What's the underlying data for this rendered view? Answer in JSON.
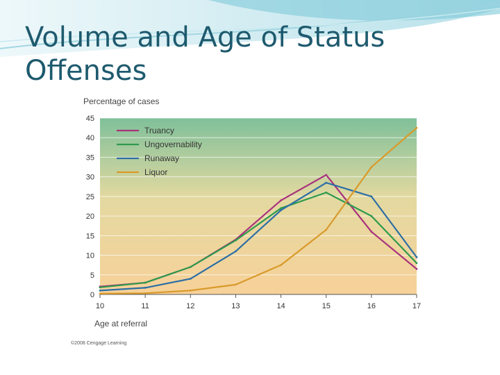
{
  "slide": {
    "title": "Volume and Age of Status Offenses"
  },
  "colors": {
    "title": "#1e5a6e",
    "header_swoosh": "#7fc9d9",
    "band_top": "#7fc09a",
    "band_mid": "#e3d9a0",
    "band_bottom": "#f7d199"
  },
  "chart_data": {
    "type": "line",
    "ylabel": "Percentage of cases",
    "xlabel": "Age at referral",
    "x": [
      10,
      11,
      12,
      13,
      14,
      15,
      16,
      17
    ],
    "ylim": [
      0,
      45
    ],
    "xlim": [
      10,
      17
    ],
    "yticks": [
      0,
      5,
      10,
      15,
      20,
      25,
      30,
      35,
      40,
      45
    ],
    "grid": "horizontal",
    "legend_position": "top-left",
    "credit": "©2008 Cengage Learning",
    "series": [
      {
        "name": "Truancy",
        "color": "#a8327c",
        "values": [
          2.0,
          3.0,
          7.0,
          14.0,
          24.0,
          30.5,
          16.0,
          6.5
        ]
      },
      {
        "name": "Ungovernability",
        "color": "#2e9a4e",
        "values": [
          1.8,
          3.0,
          7.0,
          13.8,
          22.0,
          26.0,
          20.0,
          8.0
        ]
      },
      {
        "name": "Runaway",
        "color": "#2b6ea5",
        "values": [
          1.0,
          1.7,
          4.0,
          11.0,
          21.5,
          28.5,
          25.0,
          9.5
        ]
      },
      {
        "name": "Liquor",
        "color": "#d99a2b",
        "values": [
          0.2,
          0.3,
          1.0,
          2.5,
          7.5,
          16.5,
          32.5,
          42.5
        ]
      }
    ]
  }
}
